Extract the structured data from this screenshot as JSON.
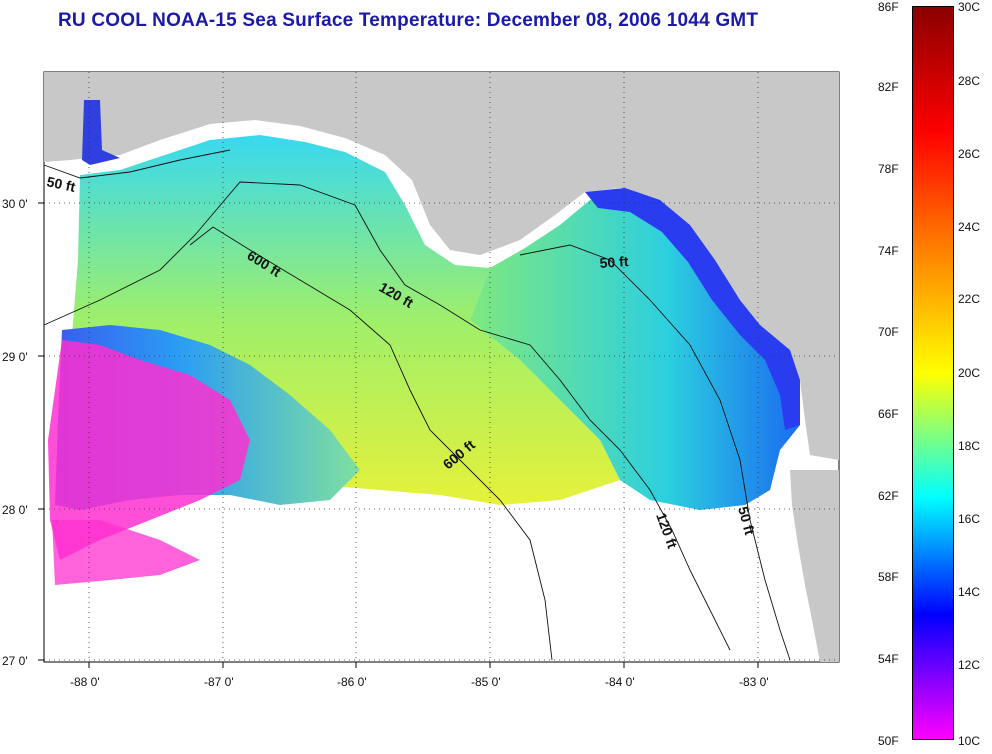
{
  "title": "RU COOL  NOAA-15  Sea Surface Temperature:  December 08, 2006 1044 GMT",
  "map": {
    "lon_ticks": [
      "-88 0'",
      "-87 0'",
      "-86 0'",
      "-85 0'",
      "-84 0'",
      "-83 0'"
    ],
    "lat_ticks": [
      "30 0'",
      "29 0'",
      "28 0'",
      "27 0'"
    ],
    "contour_labels": [
      "50 ft",
      "600 ft",
      "120 ft",
      "50 ft",
      "600 ft",
      "120 ft",
      "50 ft"
    ],
    "land_color": "#c8c8c8",
    "no_data_color": "#ffffff"
  },
  "colorbar": {
    "fahrenheit_labels": [
      "86F",
      "82F",
      "78F",
      "74F",
      "70F",
      "66F",
      "62F",
      "58F",
      "54F",
      "50F"
    ],
    "celsius_labels": [
      "30C",
      "28C",
      "26C",
      "24C",
      "22C",
      "20C",
      "18C",
      "16C",
      "14C",
      "12C",
      "10C"
    ],
    "colors": [
      "#8b0000",
      "#ff0000",
      "#ff7f00",
      "#ffff00",
      "#00ffff",
      "#0000ff",
      "#ff00ff"
    ]
  }
}
